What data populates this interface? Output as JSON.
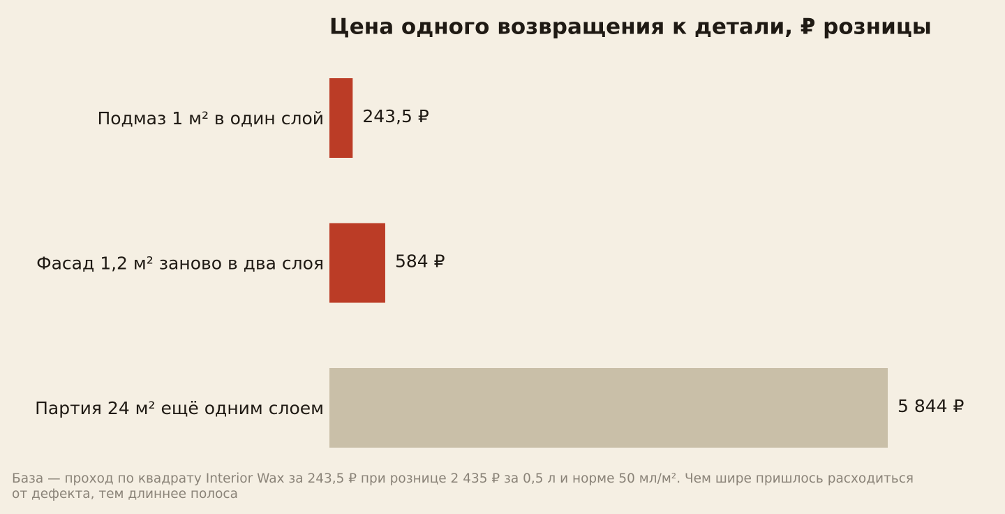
{
  "chart_data": {
    "type": "bar",
    "orientation": "horizontal",
    "title": "Цена одного возвращения к детали, ₽ розницы",
    "categories": [
      "Подмаз 1 м² в один слой",
      "Фасад 1,2 м² заново в два слоя",
      "Партия 24 м² ещё одним слоем"
    ],
    "values": [
      243.5,
      584,
      5844
    ],
    "value_labels": [
      "243,5 ₽",
      "584 ₽",
      "5 844 ₽"
    ],
    "colors": [
      "#bb3c26",
      "#bb3c26",
      "#c9bfa8"
    ],
    "footnote": [
      "База — проход по квадрату Interior Wax за 243,5 ₽ при рознице 2 435 ₽ за 0,5 л и норме 50 мл/м². Чем шире пришлось расходиться",
      "от дефекта, тем длиннее полоса"
    ]
  }
}
